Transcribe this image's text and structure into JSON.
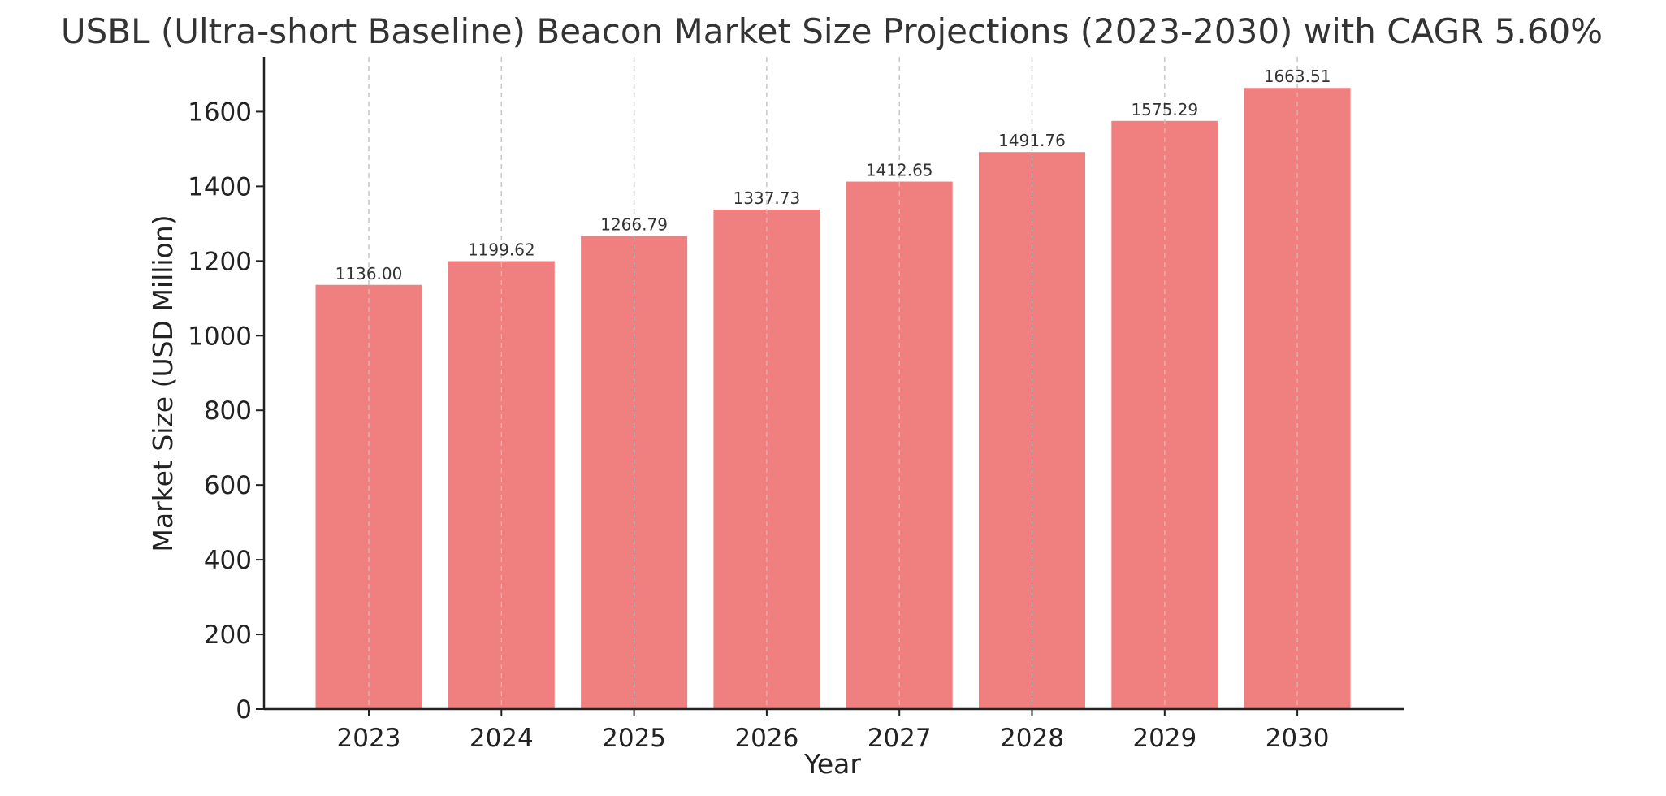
{
  "chart_data": {
    "type": "bar",
    "title": "USBL (Ultra-short Baseline) Beacon Market Size Projections (2023-2030) with CAGR 5.60%",
    "xlabel": "Year",
    "ylabel": "Market Size (USD Million)",
    "categories": [
      "2023",
      "2024",
      "2025",
      "2026",
      "2027",
      "2028",
      "2029",
      "2030"
    ],
    "values": [
      1136.0,
      1199.62,
      1266.79,
      1337.73,
      1412.65,
      1491.76,
      1575.29,
      1663.51
    ],
    "data_labels": [
      "1136.00",
      "1199.62",
      "1266.79",
      "1337.73",
      "1412.65",
      "1491.76",
      "1575.29",
      "1663.51"
    ],
    "ylim": [
      0,
      1746.69
    ],
    "yticks": [
      0,
      200,
      400,
      600,
      800,
      1000,
      1200,
      1400,
      1600
    ],
    "ytick_labels": [
      "0",
      "200",
      "400",
      "600",
      "800",
      "1000",
      "1200",
      "1400",
      "1600"
    ],
    "grid": {
      "x": true,
      "y": false,
      "style": "dashed"
    },
    "colors": {
      "bar": "#f08080",
      "grid": "#c8c8c8",
      "axis": "#222222",
      "title": "#333333",
      "text": "#222222"
    }
  }
}
